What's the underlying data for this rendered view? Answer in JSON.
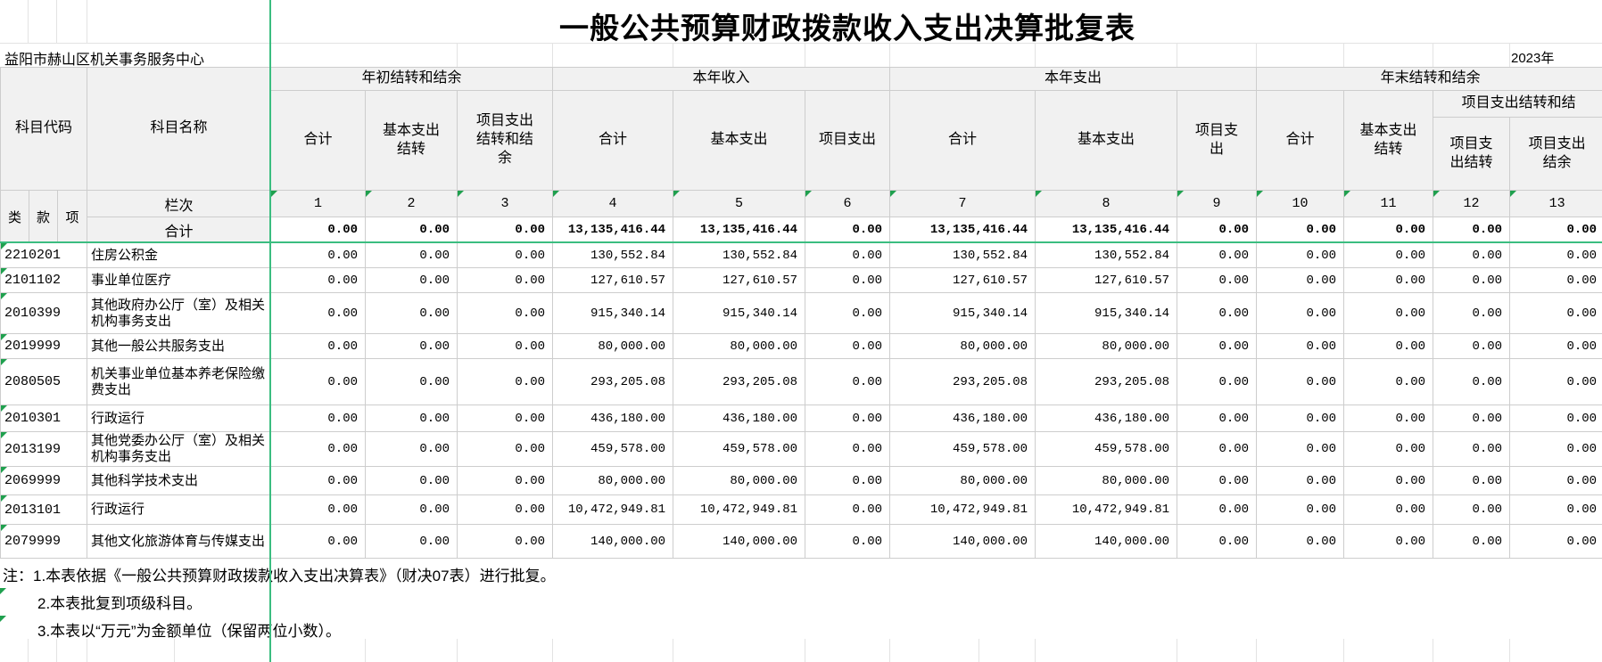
{
  "title": "一般公共预算财政拨款收入支出决算批复表",
  "org": "益阳市赫山区机关事务服务中心",
  "year": "2023年",
  "header": {
    "subject_code": "科目代码",
    "subject_name": "科目名称",
    "class": "类",
    "fund": "款",
    "item": "项",
    "lanci": "栏次",
    "g1": "年初结转和结余",
    "g2": "本年收入",
    "g3": "本年支出",
    "g4": "年末结转和结余",
    "g4_sub": "项目支出结转和结",
    "c1": "合计",
    "c2": "基本支出结转",
    "c3": "项目支出结转和结余",
    "c4": "合计",
    "c5": "基本支出",
    "c6": "项目支出",
    "c7": "合计",
    "c8": "基本支出",
    "c9": "项目支出",
    "c10": "合计",
    "c11": "基本支出结转",
    "c12": "项目支出结转",
    "c13": "项目支出结余"
  },
  "column_numbers": [
    "1",
    "2",
    "3",
    "4",
    "5",
    "6",
    "7",
    "8",
    "9",
    "10",
    "11",
    "12",
    "13"
  ],
  "totals": {
    "label": "合计",
    "values": [
      "0.00",
      "0.00",
      "0.00",
      "13,135,416.44",
      "13,135,416.44",
      "0.00",
      "13,135,416.44",
      "13,135,416.44",
      "0.00",
      "0.00",
      "0.00",
      "0.00",
      "0.00"
    ]
  },
  "rows": [
    {
      "code": "2210201",
      "name": "住房公积金",
      "values": [
        "0.00",
        "0.00",
        "0.00",
        "130,552.84",
        "130,552.84",
        "0.00",
        "130,552.84",
        "130,552.84",
        "0.00",
        "0.00",
        "0.00",
        "0.00",
        "0.00"
      ]
    },
    {
      "code": "2101102",
      "name": "事业单位医疗",
      "values": [
        "0.00",
        "0.00",
        "0.00",
        "127,610.57",
        "127,610.57",
        "0.00",
        "127,610.57",
        "127,610.57",
        "0.00",
        "0.00",
        "0.00",
        "0.00",
        "0.00"
      ]
    },
    {
      "code": "2010399",
      "name": "其他政府办公厅（室）及相关机构事务支出",
      "values": [
        "0.00",
        "0.00",
        "0.00",
        "915,340.14",
        "915,340.14",
        "0.00",
        "915,340.14",
        "915,340.14",
        "0.00",
        "0.00",
        "0.00",
        "0.00",
        "0.00"
      ]
    },
    {
      "code": "2019999",
      "name": "其他一般公共服务支出",
      "values": [
        "0.00",
        "0.00",
        "0.00",
        "80,000.00",
        "80,000.00",
        "0.00",
        "80,000.00",
        "80,000.00",
        "0.00",
        "0.00",
        "0.00",
        "0.00",
        "0.00"
      ]
    },
    {
      "code": "2080505",
      "name": "机关事业单位基本养老保险缴费支出",
      "values": [
        "0.00",
        "0.00",
        "0.00",
        "293,205.08",
        "293,205.08",
        "0.00",
        "293,205.08",
        "293,205.08",
        "0.00",
        "0.00",
        "0.00",
        "0.00",
        "0.00"
      ]
    },
    {
      "code": "2010301",
      "name": "行政运行",
      "values": [
        "0.00",
        "0.00",
        "0.00",
        "436,180.00",
        "436,180.00",
        "0.00",
        "436,180.00",
        "436,180.00",
        "0.00",
        "0.00",
        "0.00",
        "0.00",
        "0.00"
      ]
    },
    {
      "code": "2013199",
      "name": "其他党委办公厅（室）及相关机构事务支出",
      "values": [
        "0.00",
        "0.00",
        "0.00",
        "459,578.00",
        "459,578.00",
        "0.00",
        "459,578.00",
        "459,578.00",
        "0.00",
        "0.00",
        "0.00",
        "0.00",
        "0.00"
      ]
    },
    {
      "code": "2069999",
      "name": "其他科学技术支出",
      "values": [
        "0.00",
        "0.00",
        "0.00",
        "80,000.00",
        "80,000.00",
        "0.00",
        "80,000.00",
        "80,000.00",
        "0.00",
        "0.00",
        "0.00",
        "0.00",
        "0.00"
      ]
    },
    {
      "code": "2013101",
      "name": "行政运行",
      "values": [
        "0.00",
        "0.00",
        "0.00",
        "10,472,949.81",
        "10,472,949.81",
        "0.00",
        "10,472,949.81",
        "10,472,949.81",
        "0.00",
        "0.00",
        "0.00",
        "0.00",
        "0.00"
      ]
    },
    {
      "code": "2079999",
      "name": "其他文化旅游体育与传媒支出",
      "values": [
        "0.00",
        "0.00",
        "0.00",
        "140,000.00",
        "140,000.00",
        "0.00",
        "140,000.00",
        "140,000.00",
        "0.00",
        "0.00",
        "0.00",
        "0.00",
        "0.00"
      ]
    }
  ],
  "notes": [
    "注：1.本表依据《一般公共预算财政拨款收入支出决算表》（财决07表）进行批复。",
    "2.本表批复到项级科目。",
    "3.本表以“万元”为金额单位（保留两位小数）。"
  ]
}
